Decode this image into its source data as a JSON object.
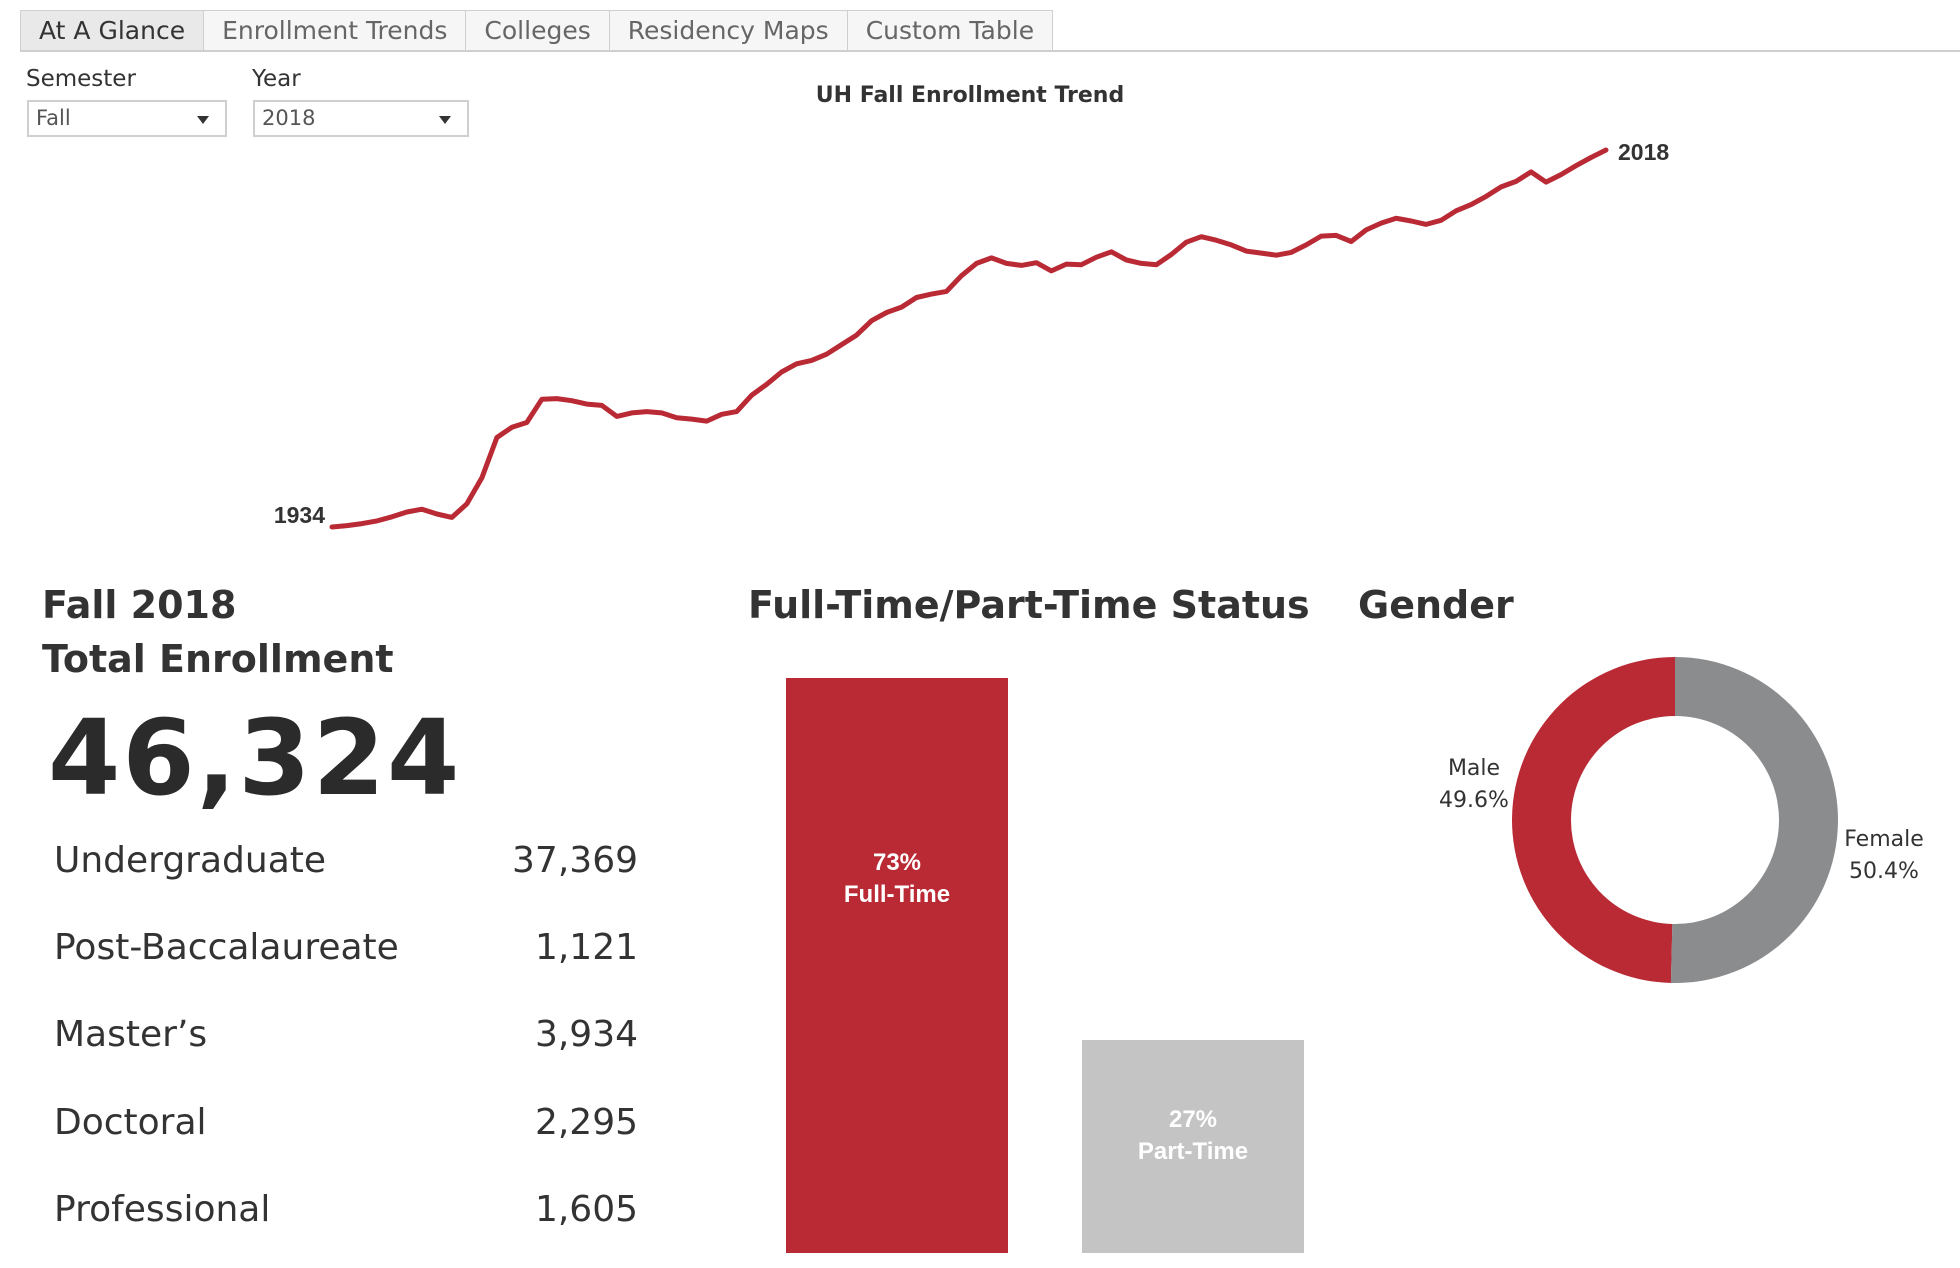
{
  "tabs": [
    {
      "label": "At A Glance",
      "active": true
    },
    {
      "label": "Enrollment Trends",
      "active": false
    },
    {
      "label": "Colleges",
      "active": false
    },
    {
      "label": "Residency Maps",
      "active": false
    },
    {
      "label": "Custom Table",
      "active": false
    }
  ],
  "filters": {
    "semester": {
      "label": "Semester",
      "value": "Fall"
    },
    "year": {
      "label": "Year",
      "value": "2018"
    }
  },
  "colors": {
    "accent": "#b92a35",
    "gray": "#8a8c8e",
    "light_gray": "#c4c4c4"
  },
  "chart_data": [
    {
      "type": "line",
      "title": "UH Fall Enrollment Trend",
      "xlabel": "",
      "ylabel": "",
      "grid": false,
      "start_label": "1934",
      "end_label": "2018",
      "series": [
        {
          "values": [
            0,
            2,
            5,
            9,
            15,
            22,
            26,
            19,
            14,
            34,
            72,
            131,
            146,
            153,
            187,
            188,
            185,
            180,
            178,
            162,
            167,
            169,
            167,
            160,
            158,
            155,
            165,
            169,
            193,
            209,
            227,
            239,
            244,
            253,
            267,
            281,
            302,
            314,
            322,
            336,
            341,
            345,
            368,
            386,
            394,
            386,
            383,
            387,
            375,
            385,
            384,
            395,
            403,
            391,
            386,
            384,
            399,
            417,
            425,
            420,
            413,
            404,
            401,
            398,
            402,
            413,
            426,
            427,
            418,
            435,
            445,
            452,
            448,
            443,
            449,
            463,
            472,
            484,
            498,
            506,
            520,
            505,
            516,
            529,
            541,
            552
          ]
        }
      ]
    },
    {
      "type": "bar",
      "title": "Full-Time/Part-Time Status",
      "categories": [
        "Full-Time",
        "Part-Time"
      ],
      "values": [
        73,
        27
      ],
      "labels": [
        "73%",
        "27%"
      ]
    },
    {
      "type": "pie",
      "title": "Gender",
      "categories": [
        "Male",
        "Female"
      ],
      "values": [
        49.6,
        50.4
      ],
      "labels": [
        "49.6%",
        "50.4%"
      ]
    }
  ],
  "summary": {
    "heading_line1": "Fall 2018",
    "heading_line2": "Total Enrollment",
    "total": "46,324",
    "rows": [
      {
        "label": "Undergraduate",
        "value": "37,369"
      },
      {
        "label": "Post-Baccalaureate",
        "value": "1,121"
      },
      {
        "label": "Master’s",
        "value": "3,934"
      },
      {
        "label": "Doctoral",
        "value": "2,295"
      },
      {
        "label": "Professional",
        "value": "1,605"
      }
    ]
  }
}
